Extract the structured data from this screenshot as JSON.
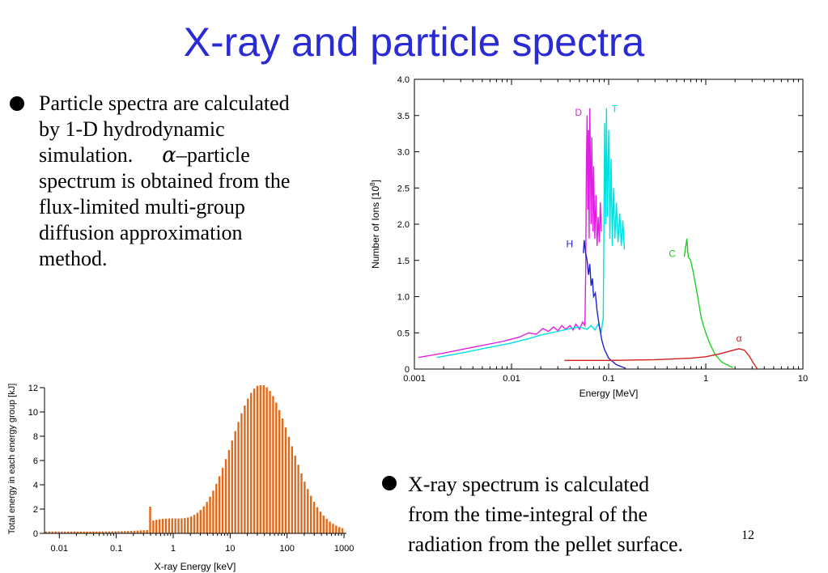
{
  "slide": {
    "title": "X-ray and particle spectra",
    "page_number": "12"
  },
  "bullets": [
    {
      "lines": [
        "Particle spectra are calculated",
        "by 1-D hydrodynamic",
        "simulation.",
        "spectrum is obtained from the",
        "flux-limited multi-group",
        "diffusion approximation",
        "method."
      ],
      "alpha_symbol": "α",
      "alpha_suffix": "–particle"
    },
    {
      "lines": [
        "X-ray spectrum is calculated",
        "from the time-integral of the",
        "radiation from the pellet surface."
      ]
    }
  ],
  "chart_data": [
    {
      "type": "line",
      "title": "",
      "xlabel": "Energy [MeV]",
      "ylabel": "Number of Ions [10^8]",
      "xscale": "log",
      "xlim": [
        0.001,
        10
      ],
      "ylim": [
        0,
        4.0
      ],
      "x_ticks": [
        "0.001",
        "0.01",
        "0.1",
        "1",
        "10"
      ],
      "y_ticks": [
        "0",
        "0.5",
        "1.0",
        "1.5",
        "2.0",
        "2.5",
        "3.0",
        "3.5",
        "4.0"
      ],
      "grid": false,
      "series": [
        {
          "name": "D",
          "color": "#e020e0",
          "points": [
            [
              0.0011,
              0.16
            ],
            [
              0.002,
              0.22
            ],
            [
              0.004,
              0.3
            ],
            [
              0.008,
              0.38
            ],
            [
              0.012,
              0.44
            ],
            [
              0.015,
              0.5
            ],
            [
              0.018,
              0.48
            ],
            [
              0.021,
              0.56
            ],
            [
              0.024,
              0.52
            ],
            [
              0.027,
              0.58
            ],
            [
              0.03,
              0.53
            ],
            [
              0.033,
              0.6
            ],
            [
              0.036,
              0.55
            ],
            [
              0.04,
              0.6
            ],
            [
              0.043,
              0.54
            ],
            [
              0.046,
              0.62
            ],
            [
              0.05,
              0.55
            ],
            [
              0.054,
              0.65
            ],
            [
              0.057,
              0.6
            ],
            [
              0.058,
              1.3
            ],
            [
              0.059,
              2.8
            ],
            [
              0.06,
              3.5
            ],
            [
              0.061,
              2.2
            ],
            [
              0.062,
              3.3
            ],
            [
              0.063,
              1.8
            ],
            [
              0.064,
              3.6
            ],
            [
              0.066,
              2.0
            ],
            [
              0.067,
              3.2
            ],
            [
              0.069,
              1.9
            ],
            [
              0.07,
              2.8
            ],
            [
              0.072,
              1.8
            ],
            [
              0.074,
              2.4
            ],
            [
              0.076,
              1.7
            ],
            [
              0.078,
              2.1
            ],
            [
              0.08,
              1.75
            ],
            [
              0.082,
              2.3
            ],
            [
              0.084,
              1.9
            ]
          ]
        },
        {
          "name": "T",
          "color": "#00e0e0",
          "points": [
            [
              0.0017,
              0.16
            ],
            [
              0.003,
              0.22
            ],
            [
              0.006,
              0.3
            ],
            [
              0.01,
              0.36
            ],
            [
              0.015,
              0.42
            ],
            [
              0.02,
              0.47
            ],
            [
              0.03,
              0.52
            ],
            [
              0.04,
              0.56
            ],
            [
              0.05,
              0.58
            ],
            [
              0.06,
              0.55
            ],
            [
              0.066,
              0.6
            ],
            [
              0.072,
              0.54
            ],
            [
              0.078,
              0.62
            ],
            [
              0.084,
              0.52
            ],
            [
              0.088,
              0.7
            ],
            [
              0.089,
              1.5
            ],
            [
              0.09,
              2.6
            ],
            [
              0.091,
              3.4
            ],
            [
              0.093,
              2.0
            ],
            [
              0.095,
              3.6
            ],
            [
              0.097,
              2.1
            ],
            [
              0.1,
              3.3
            ],
            [
              0.103,
              1.8
            ],
            [
              0.106,
              2.9
            ],
            [
              0.109,
              1.7
            ],
            [
              0.112,
              2.5
            ],
            [
              0.116,
              1.8
            ],
            [
              0.12,
              2.3
            ],
            [
              0.125,
              1.75
            ],
            [
              0.13,
              2.15
            ],
            [
              0.135,
              1.7
            ],
            [
              0.14,
              2.05
            ],
            [
              0.145,
              1.65
            ]
          ]
        },
        {
          "name": "H",
          "color": "#2020d0",
          "points": [
            [
              0.055,
              1.6
            ],
            [
              0.056,
              1.78
            ],
            [
              0.058,
              1.6
            ],
            [
              0.06,
              1.5
            ],
            [
              0.062,
              1.3
            ],
            [
              0.064,
              1.45
            ],
            [
              0.066,
              1.15
            ],
            [
              0.068,
              1.25
            ],
            [
              0.07,
              1.0
            ],
            [
              0.073,
              1.05
            ],
            [
              0.076,
              0.8
            ],
            [
              0.08,
              0.6
            ],
            [
              0.085,
              0.4
            ],
            [
              0.09,
              0.28
            ],
            [
              0.1,
              0.15
            ],
            [
              0.12,
              0.06
            ],
            [
              0.15,
              0.01
            ]
          ]
        },
        {
          "name": "C",
          "color": "#20d020",
          "points": [
            [
              0.6,
              1.55
            ],
            [
              0.62,
              1.68
            ],
            [
              0.64,
              1.8
            ],
            [
              0.66,
              1.55
            ],
            [
              0.7,
              1.5
            ],
            [
              0.74,
              1.35
            ],
            [
              0.8,
              1.1
            ],
            [
              0.85,
              0.9
            ],
            [
              0.9,
              0.7
            ],
            [
              1.0,
              0.5
            ],
            [
              1.1,
              0.35
            ],
            [
              1.25,
              0.2
            ],
            [
              1.45,
              0.1
            ],
            [
              1.7,
              0.05
            ],
            [
              1.9,
              0.02
            ]
          ]
        },
        {
          "name": "α",
          "color": "#d02020",
          "points": [
            [
              0.035,
              0.12
            ],
            [
              0.1,
              0.12
            ],
            [
              0.3,
              0.13
            ],
            [
              0.7,
              0.15
            ],
            [
              1.0,
              0.17
            ],
            [
              1.4,
              0.21
            ],
            [
              1.8,
              0.25
            ],
            [
              2.2,
              0.28
            ],
            [
              2.5,
              0.26
            ],
            [
              2.8,
              0.18
            ],
            [
              3.1,
              0.08
            ],
            [
              3.4,
              0.0
            ]
          ]
        }
      ]
    },
    {
      "type": "bar",
      "title": "",
      "xlabel": "X-ray Energy [keV]",
      "ylabel": "Total energy in each energy group [kJ]",
      "xscale": "log",
      "xlim": [
        0.0055,
        1100
      ],
      "ylim": [
        0,
        12
      ],
      "x_ticks": [
        "0.01",
        "0.1",
        "1",
        "10",
        "100",
        "1000"
      ],
      "y_ticks": [
        "0",
        "2",
        "4",
        "6",
        "8",
        "10",
        "12"
      ],
      "color": "#e06a1a",
      "grid": false,
      "bins_x_range": [
        0.0055,
        1000
      ],
      "bins_per_decade": 18,
      "spectrum_model": {
        "baseline": 0.15,
        "low_hump": {
          "peak_at": 0.7,
          "height": 1.0,
          "width_decades": 0.4
        },
        "spike": {
          "at": 0.37,
          "value": 2.2
        },
        "main_peak": {
          "peak_at": 35,
          "height": 12.1,
          "width_decades": 0.52
        }
      }
    }
  ]
}
